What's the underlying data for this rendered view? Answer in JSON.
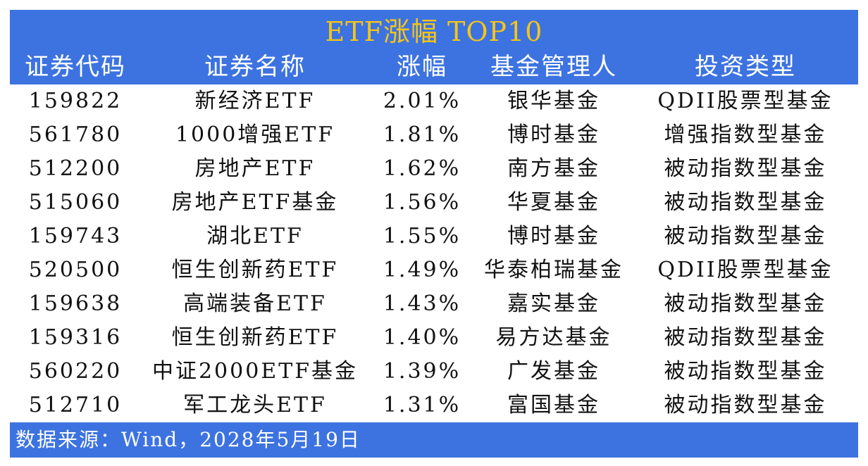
{
  "colors": {
    "banner": "#3d73e0",
    "title": "#f5c518",
    "header_text": "#ffffff",
    "cell_text": "#111111"
  },
  "chart_data": {
    "type": "table",
    "title": "ETF涨幅 TOP10",
    "columns": [
      "证券代码",
      "证券名称",
      "涨幅",
      "基金管理人",
      "投资类型"
    ],
    "rows": [
      [
        "159822",
        "新经济ETF",
        "2.01%",
        "银华基金",
        "QDII股票型基金"
      ],
      [
        "561780",
        "1000增强ETF",
        "1.81%",
        "博时基金",
        "增强指数型基金"
      ],
      [
        "512200",
        "房地产ETF",
        "1.62%",
        "南方基金",
        "被动指数型基金"
      ],
      [
        "515060",
        "房地产ETF基金",
        "1.56%",
        "华夏基金",
        "被动指数型基金"
      ],
      [
        "159743",
        "湖北ETF",
        "1.55%",
        "博时基金",
        "被动指数型基金"
      ],
      [
        "520500",
        "恒生创新药ETF",
        "1.49%",
        "华泰柏瑞基金",
        "QDII股票型基金"
      ],
      [
        "159638",
        "高端装备ETF",
        "1.43%",
        "嘉实基金",
        "被动指数型基金"
      ],
      [
        "159316",
        "恒生创新药ETF",
        "1.40%",
        "易方达基金",
        "被动指数型基金"
      ],
      [
        "560220",
        "中证2000ETF基金",
        "1.39%",
        "广发基金",
        "被动指数型基金"
      ],
      [
        "512710",
        "军工龙头ETF",
        "1.31%",
        "富国基金",
        "被动指数型基金"
      ]
    ],
    "source": "数据来源：Wind，2028年5月19日"
  }
}
